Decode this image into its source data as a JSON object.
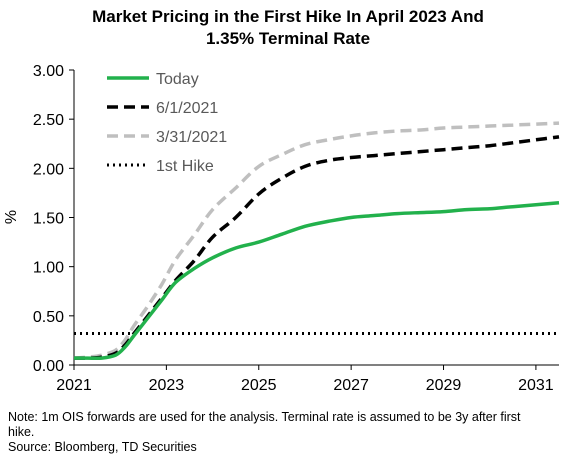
{
  "chart_data": {
    "type": "line",
    "title_lines": [
      "Market Pricing in the First Hike In April 2023 And",
      "1.35% Terminal Rate"
    ],
    "xlabel": "",
    "ylabel": "%",
    "xlim": [
      2021,
      2031.5
    ],
    "ylim": [
      0,
      3
    ],
    "x_ticks": [
      "2021",
      "2023",
      "2025",
      "2027",
      "2029",
      "2031"
    ],
    "y_ticks": [
      "0.00",
      "0.50",
      "1.00",
      "1.50",
      "2.00",
      "2.50",
      "3.00"
    ],
    "grid": false,
    "legend_position": "top-left",
    "series": [
      {
        "name": "Today",
        "style": "solid",
        "color": "#22b14c",
        "x": [
          2021.0,
          2021.3,
          2021.6,
          2021.9,
          2022.1,
          2022.3,
          2022.6,
          2022.9,
          2023.2,
          2023.6,
          2024.0,
          2024.5,
          2025.0,
          2025.5,
          2026.0,
          2026.5,
          2027.0,
          2027.5,
          2028.0,
          2028.5,
          2029.0,
          2029.5,
          2030.0,
          2030.5,
          2031.0,
          2031.5
        ],
        "y": [
          0.07,
          0.07,
          0.07,
          0.1,
          0.18,
          0.3,
          0.48,
          0.66,
          0.84,
          0.98,
          1.09,
          1.19,
          1.25,
          1.33,
          1.41,
          1.46,
          1.5,
          1.52,
          1.54,
          1.55,
          1.56,
          1.58,
          1.59,
          1.61,
          1.63,
          1.65
        ]
      },
      {
        "name": "6/1/2021",
        "style": "dashed",
        "color": "#000000",
        "x": [
          2021.0,
          2021.3,
          2021.6,
          2021.9,
          2022.1,
          2022.3,
          2022.6,
          2022.9,
          2023.2,
          2023.6,
          2024.0,
          2024.5,
          2025.0,
          2025.5,
          2026.0,
          2026.5,
          2027.0,
          2027.5,
          2028.0,
          2028.5,
          2029.0,
          2029.5,
          2030.0,
          2030.5,
          2031.0,
          2031.5
        ],
        "y": [
          0.07,
          0.07,
          0.08,
          0.12,
          0.2,
          0.32,
          0.5,
          0.68,
          0.86,
          1.06,
          1.3,
          1.5,
          1.74,
          1.9,
          2.02,
          2.08,
          2.11,
          2.13,
          2.15,
          2.17,
          2.19,
          2.21,
          2.23,
          2.26,
          2.29,
          2.32
        ]
      },
      {
        "name": "3/31/2021",
        "style": "dashed",
        "color": "#bfbfbf",
        "x": [
          2021.0,
          2021.3,
          2021.6,
          2021.9,
          2022.1,
          2022.3,
          2022.6,
          2022.9,
          2023.2,
          2023.6,
          2024.0,
          2024.5,
          2025.0,
          2025.5,
          2026.0,
          2026.5,
          2027.0,
          2027.5,
          2028.0,
          2028.5,
          2029.0,
          2029.5,
          2030.0,
          2030.5,
          2031.0,
          2031.5
        ],
        "y": [
          0.07,
          0.08,
          0.1,
          0.15,
          0.25,
          0.4,
          0.6,
          0.82,
          1.07,
          1.32,
          1.58,
          1.8,
          2.02,
          2.14,
          2.24,
          2.29,
          2.33,
          2.36,
          2.38,
          2.39,
          2.41,
          2.42,
          2.43,
          2.44,
          2.45,
          2.46
        ]
      },
      {
        "name": "1st Hike",
        "style": "dotted",
        "color": "#000000",
        "x": [
          2021.0,
          2031.5
        ],
        "y": [
          0.32,
          0.32
        ]
      }
    ]
  },
  "footnote": {
    "line1": "Note: 1m OIS forwards are used for the analysis. Terminal rate is assumed to be 3y after first",
    "line2": "hike.",
    "line3": "Source: Bloomberg, TD Securities"
  }
}
